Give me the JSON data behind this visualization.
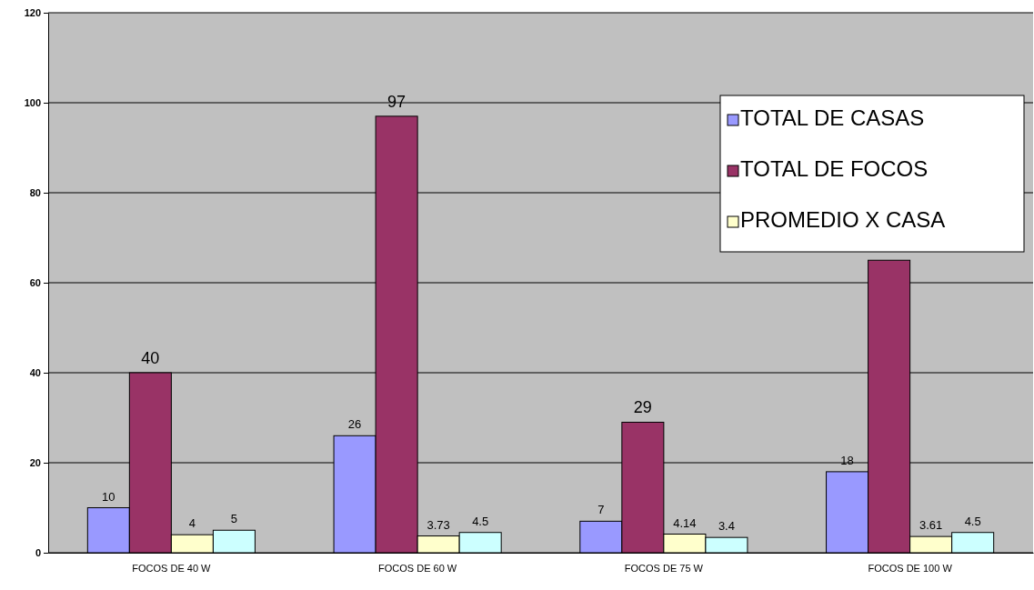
{
  "chart_data": {
    "type": "bar",
    "categories": [
      "FOCOS DE 40 W",
      "FOCOS DE 60 W",
      "FOCOS DE 75 W",
      "FOCOS DE 100 W"
    ],
    "series": [
      {
        "name": "TOTAL DE CASAS",
        "color": "#9999ff",
        "values": [
          10,
          26,
          7,
          18
        ],
        "value_labels": [
          "10",
          "26",
          "7",
          "18"
        ]
      },
      {
        "name": "TOTAL DE FOCOS",
        "color": "#993366",
        "values": [
          40,
          97,
          29,
          65
        ],
        "value_labels": [
          "40",
          "97",
          "29",
          null
        ]
      },
      {
        "name": "PROMEDIO X CASA",
        "color": "#ffffcc",
        "values": [
          4,
          3.73,
          4.14,
          3.61
        ],
        "value_labels": [
          "4",
          "3.73",
          "4.14",
          "3.61"
        ]
      },
      {
        "color": "#ccffff",
        "values": [
          5,
          4.5,
          3.4,
          4.5
        ],
        "value_labels": [
          "5",
          "4.5",
          "3.4",
          "4.5"
        ]
      }
    ],
    "ylim": [
      0,
      120
    ],
    "yticks": [
      0,
      20,
      40,
      60,
      80,
      100,
      120
    ],
    "grid": "y",
    "legend": "top right"
  }
}
